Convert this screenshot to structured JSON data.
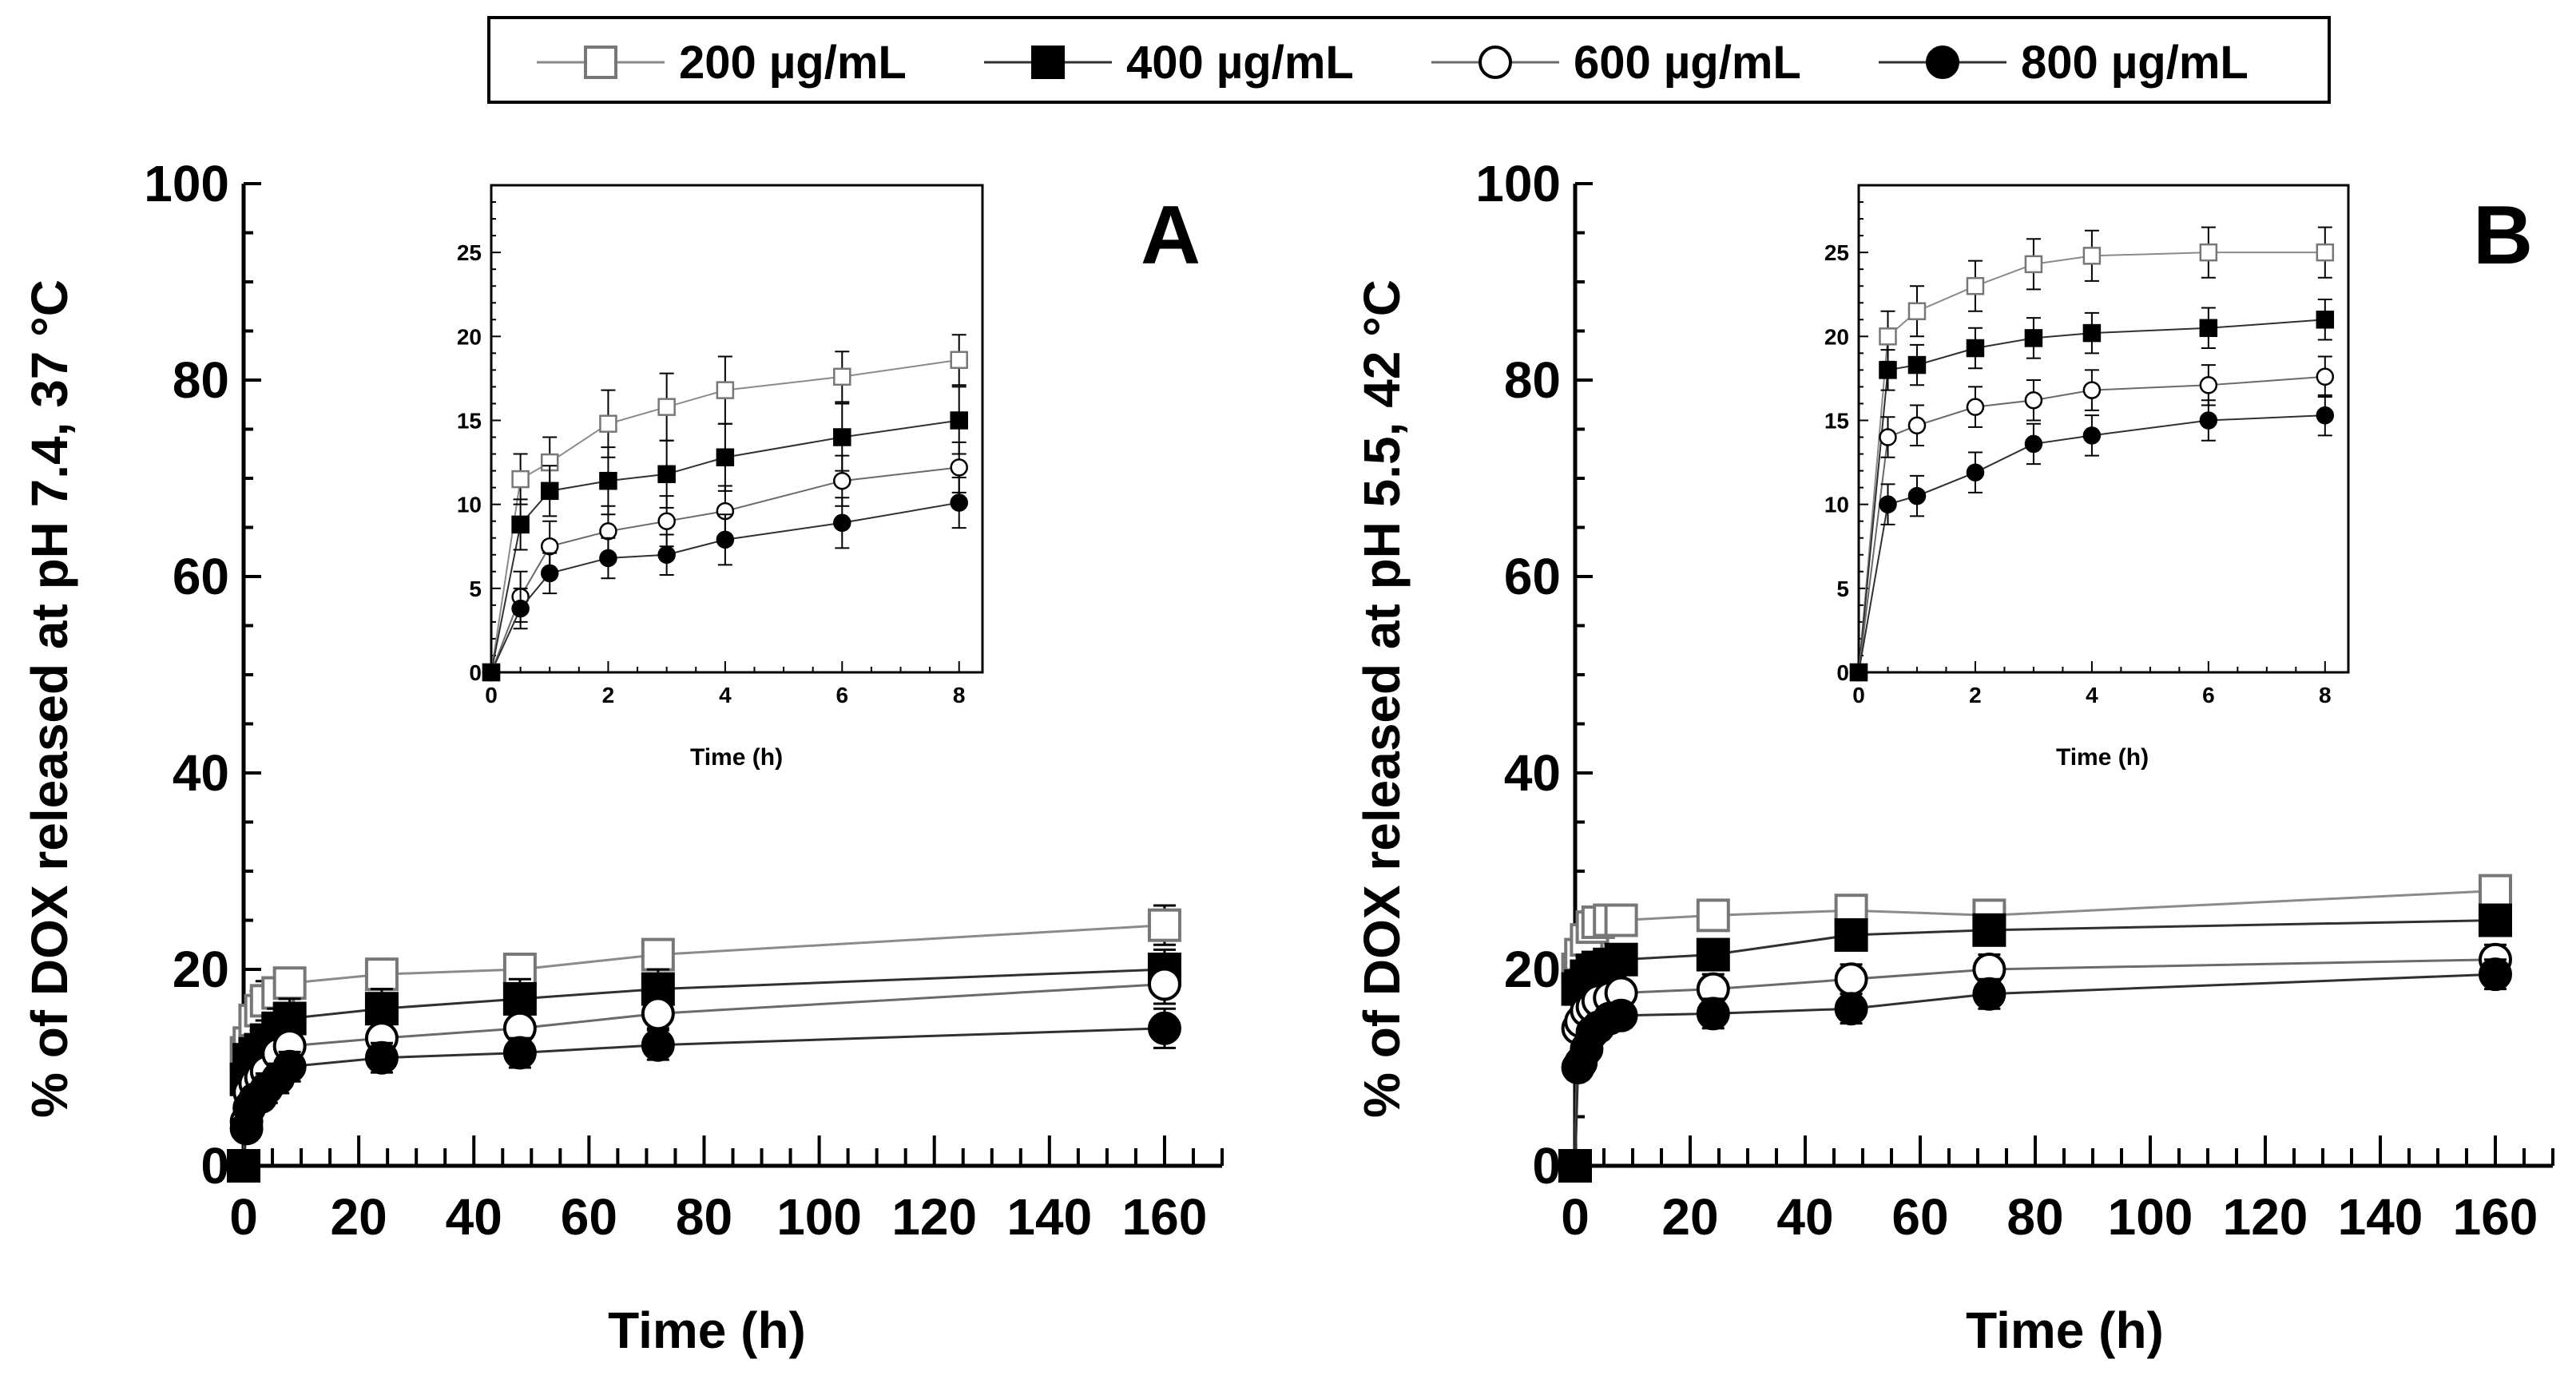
{
  "legend": {
    "entries": [
      {
        "label": "200 µg/mL",
        "marker": "open-square"
      },
      {
        "label": "400 µg/mL",
        "marker": "filled-square"
      },
      {
        "label": "600 µg/mL",
        "marker": "open-circle"
      },
      {
        "label": "800 µg/mL",
        "marker": "filled-circle"
      }
    ],
    "placement": "top-center"
  },
  "chart_data": [
    {
      "type": "line",
      "panel": "A",
      "title": "",
      "xlabel": "Time (h)",
      "ylabel": "% of DOX released at pH 7.4, 37 °C",
      "xlim": [
        0,
        170
      ],
      "ylim": [
        0,
        100
      ],
      "xticks": [
        0,
        20,
        40,
        60,
        80,
        100,
        120,
        140,
        160
      ],
      "yticks": [
        0,
        20,
        40,
        60,
        80,
        100
      ],
      "x": [
        0,
        0.5,
        1,
        2,
        3,
        4,
        6,
        8,
        24,
        48,
        72,
        160
      ],
      "series": [
        {
          "name": "200 µg/mL",
          "marker": "open-square",
          "values": [
            0,
            11.5,
            12.5,
            14.8,
            15.8,
            16.8,
            17.6,
            18.6,
            19.5,
            20,
            21.5,
            24.5
          ],
          "errors": [
            0.5,
            1.5,
            1.5,
            2,
            2,
            2,
            1.5,
            1.5,
            1.5,
            1.5,
            1.5,
            2
          ]
        },
        {
          "name": "400 µg/mL",
          "marker": "filled-square",
          "values": [
            0,
            8.8,
            10.8,
            11.4,
            11.8,
            12.8,
            14,
            15,
            16,
            17,
            18,
            20
          ],
          "errors": [
            0.5,
            1.5,
            1.5,
            2,
            2,
            2,
            2,
            2,
            2,
            2,
            2,
            2
          ]
        },
        {
          "name": "600 µg/mL",
          "marker": "open-circle",
          "values": [
            0,
            4.5,
            7.5,
            8.4,
            9,
            9.6,
            11.4,
            12.2,
            13,
            14,
            15.5,
            18.5
          ],
          "errors": [
            0.5,
            1.5,
            1.5,
            1.5,
            1.5,
            1.5,
            1.5,
            1.5,
            1.5,
            1.5,
            1.5,
            2
          ]
        },
        {
          "name": "800 µg/mL",
          "marker": "filled-circle",
          "values": [
            0,
            3.8,
            5.9,
            6.8,
            7,
            7.9,
            8.9,
            10.1,
            11,
            11.5,
            12.3,
            14
          ],
          "errors": [
            0.5,
            1.2,
            1.2,
            1.2,
            1.2,
            1.5,
            1.5,
            1.5,
            1.5,
            1.5,
            1.5,
            2
          ]
        }
      ],
      "inset": {
        "xlabel": "Time (h)",
        "xlim": [
          0,
          8.4
        ],
        "ylim": [
          0,
          29
        ],
        "xticks": [
          0,
          2,
          4,
          6,
          8
        ],
        "yticks": [
          0,
          5,
          10,
          15,
          20,
          25
        ],
        "x": [
          0,
          0.5,
          1,
          2,
          3,
          4,
          6,
          8
        ]
      },
      "panel_label": "A"
    },
    {
      "type": "line",
      "panel": "B",
      "title": "",
      "xlabel": "Time (h)",
      "ylabel": "% of DOX released at pH 5.5, 42 °C",
      "xlim": [
        0,
        170
      ],
      "ylim": [
        0,
        100
      ],
      "xticks": [
        0,
        20,
        40,
        60,
        80,
        100,
        120,
        140,
        160
      ],
      "yticks": [
        0,
        20,
        40,
        60,
        80,
        100
      ],
      "x": [
        0,
        0.5,
        1,
        2,
        3,
        4,
        6,
        8,
        24,
        48,
        72,
        160
      ],
      "series": [
        {
          "name": "200 µg/mL",
          "marker": "open-square",
          "values": [
            0,
            20,
            21.5,
            23,
            24.3,
            24.8,
            25,
            25,
            25.5,
            26,
            25.5,
            28
          ],
          "errors": [
            0.5,
            1.5,
            1.5,
            1.5,
            1.5,
            1.5,
            1.5,
            1.5,
            1.5,
            1.5,
            1.5,
            1.5
          ]
        },
        {
          "name": "400 µg/mL",
          "marker": "filled-square",
          "values": [
            0,
            18,
            18.3,
            19.3,
            19.9,
            20.2,
            20.5,
            21,
            21.5,
            23.5,
            24,
            25
          ],
          "errors": [
            0.5,
            1.2,
            1.2,
            1.2,
            1.2,
            1.2,
            1.2,
            1.2,
            1.5,
            1.5,
            1.5,
            1.5
          ]
        },
        {
          "name": "600 µg/mL",
          "marker": "open-circle",
          "values": [
            0,
            14,
            14.7,
            15.8,
            16.2,
            16.8,
            17.1,
            17.6,
            18,
            19,
            20,
            21
          ],
          "errors": [
            0.5,
            1.2,
            1.2,
            1.2,
            1.2,
            1.2,
            1.2,
            1.2,
            1.5,
            1.5,
            1.5,
            1.5
          ]
        },
        {
          "name": "800 µg/mL",
          "marker": "filled-circle",
          "values": [
            0,
            10,
            10.5,
            11.9,
            13.6,
            14.1,
            15,
            15.3,
            15.5,
            16,
            17.5,
            19.5
          ],
          "errors": [
            0.5,
            1.2,
            1.2,
            1.2,
            1.2,
            1.2,
            1.2,
            1.2,
            1.5,
            1.5,
            1.5,
            1.5
          ]
        }
      ],
      "inset": {
        "xlabel": "Time (h)",
        "xlim": [
          0,
          8.4
        ],
        "ylim": [
          0,
          29
        ],
        "xticks": [
          0,
          2,
          4,
          6,
          8
        ],
        "yticks": [
          0,
          5,
          10,
          15,
          20,
          25
        ],
        "x": [
          0,
          0.5,
          1,
          2,
          3,
          4,
          6,
          8
        ]
      },
      "panel_label": "B"
    }
  ]
}
